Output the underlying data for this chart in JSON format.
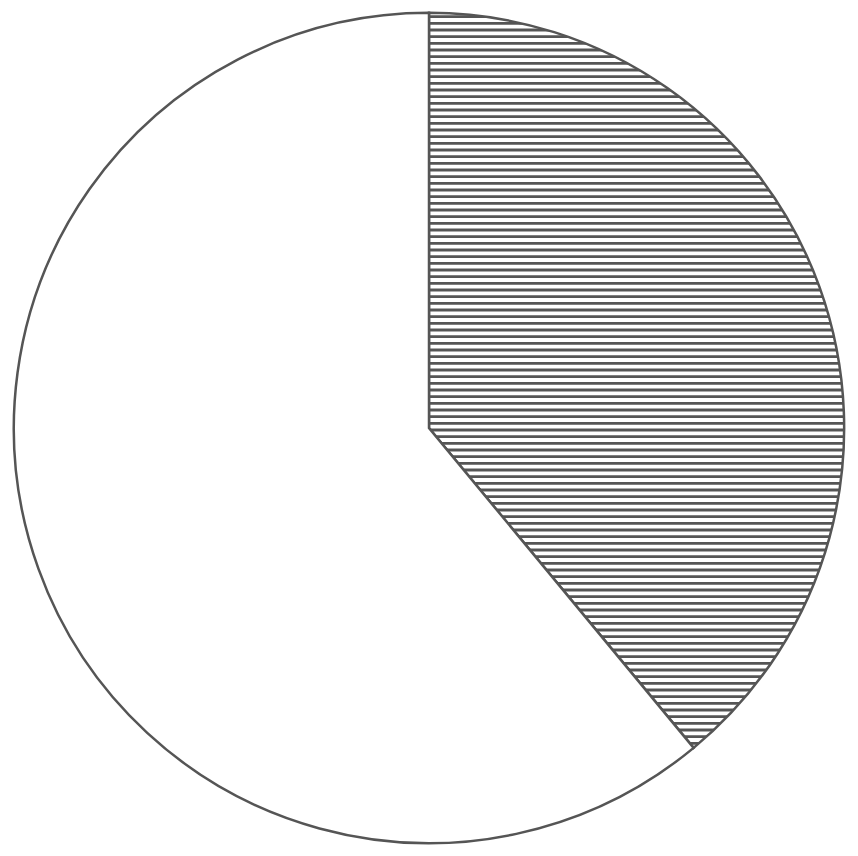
{
  "chart_data": {
    "type": "pie",
    "categories": [
      null,
      null
    ],
    "values": [
      39,
      61
    ],
    "colors": [
      "#555555",
      "#ffffff"
    ]
  }
}
